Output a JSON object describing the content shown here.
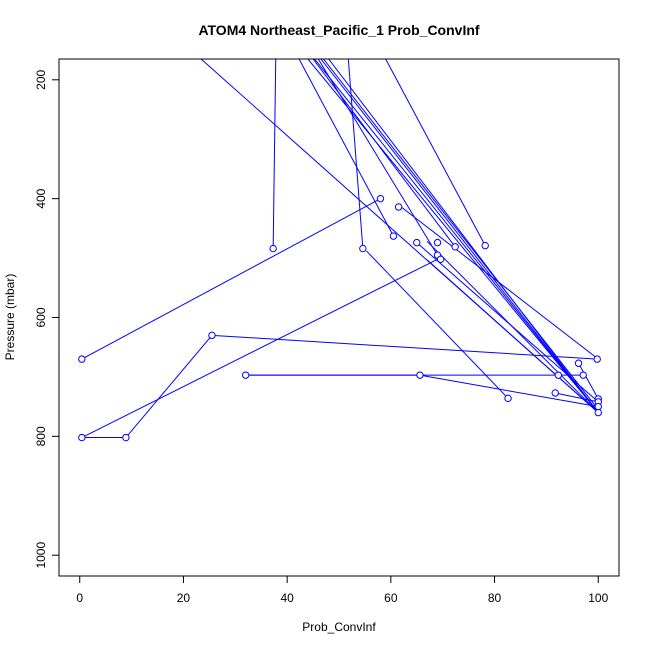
{
  "chart_data": {
    "type": "scatter",
    "title": "ATOM4 Northeast_Pacific_1 Prob_ConvInf",
    "xlabel": "Prob_ConvInf",
    "ylabel": "Pressure (mbar)",
    "xlim": [
      -4,
      104
    ],
    "ylim": [
      1035,
      165
    ],
    "y_reversed": true,
    "xticks": [
      0,
      20,
      40,
      60,
      80,
      100
    ],
    "yticks": [
      200,
      400,
      600,
      800,
      1000
    ],
    "color": "#0000ff",
    "grid": false,
    "points": [
      {
        "x": 0.4,
        "y": 670
      },
      {
        "x": 0.4,
        "y": 802
      },
      {
        "x": 8.9,
        "y": 802
      },
      {
        "x": 25.5,
        "y": 630
      },
      {
        "x": 32.0,
        "y": 697
      },
      {
        "x": 37.3,
        "y": 484
      },
      {
        "x": 54.6,
        "y": 484
      },
      {
        "x": 58.0,
        "y": 400
      },
      {
        "x": 60.5,
        "y": 463
      },
      {
        "x": 61.5,
        "y": 414
      },
      {
        "x": 65.0,
        "y": 474
      },
      {
        "x": 65.6,
        "y": 697
      },
      {
        "x": 69.0,
        "y": 474
      },
      {
        "x": 69.0,
        "y": 495
      },
      {
        "x": 69.6,
        "y": 502
      },
      {
        "x": 72.4,
        "y": 481
      },
      {
        "x": 78.2,
        "y": 479
      },
      {
        "x": 82.6,
        "y": 736
      },
      {
        "x": 91.7,
        "y": 727
      },
      {
        "x": 92.3,
        "y": 697
      },
      {
        "x": 96.2,
        "y": 677
      },
      {
        "x": 97.1,
        "y": 697
      },
      {
        "x": 99.8,
        "y": 670
      },
      {
        "x": 100,
        "y": 737
      },
      {
        "x": 100,
        "y": 742
      },
      {
        "x": 100,
        "y": 750
      },
      {
        "x": 100,
        "y": 760
      }
    ],
    "segments": [
      [
        {
          "x": 0.4,
          "y": 670
        },
        {
          "x": 58.0,
          "y": 400
        }
      ],
      [
        {
          "x": 0.4,
          "y": 802
        },
        {
          "x": 8.9,
          "y": 802
        }
      ],
      [
        {
          "x": 8.9,
          "y": 802
        },
        {
          "x": 25.5,
          "y": 630
        }
      ],
      [
        {
          "x": 25.5,
          "y": 630
        },
        {
          "x": 99.8,
          "y": 670
        }
      ],
      [
        {
          "x": 0.4,
          "y": 802
        },
        {
          "x": 69.0,
          "y": 502
        }
      ],
      [
        {
          "x": 32.0,
          "y": 697
        },
        {
          "x": 65.6,
          "y": 697
        }
      ],
      [
        {
          "x": 32.0,
          "y": 697
        },
        {
          "x": 97.1,
          "y": 697
        }
      ],
      [
        {
          "x": 65.6,
          "y": 697
        },
        {
          "x": 100,
          "y": 750
        }
      ],
      [
        {
          "x": 37.3,
          "y": 484
        },
        {
          "x": 37.8,
          "y": 165
        }
      ],
      [
        {
          "x": 54.6,
          "y": 484
        },
        {
          "x": 51.8,
          "y": 165
        }
      ],
      [
        {
          "x": 55.3,
          "y": 488
        },
        {
          "x": 82.6,
          "y": 736
        }
      ],
      [
        {
          "x": 60.5,
          "y": 463
        },
        {
          "x": 42.3,
          "y": 165
        }
      ],
      [
        {
          "x": 23.4,
          "y": 165
        },
        {
          "x": 100,
          "y": 760
        }
      ],
      [
        {
          "x": 62.0,
          "y": 414
        },
        {
          "x": 100,
          "y": 670
        }
      ],
      [
        {
          "x": 69.0,
          "y": 495
        },
        {
          "x": 46.0,
          "y": 165
        }
      ],
      [
        {
          "x": 72.4,
          "y": 481
        },
        {
          "x": 45.0,
          "y": 165
        }
      ],
      [
        {
          "x": 78.2,
          "y": 479
        },
        {
          "x": 59.0,
          "y": 165
        }
      ],
      [
        {
          "x": 46.5,
          "y": 165
        },
        {
          "x": 100,
          "y": 760
        }
      ],
      [
        {
          "x": 44.0,
          "y": 165
        },
        {
          "x": 100,
          "y": 760
        }
      ],
      [
        {
          "x": 48.0,
          "y": 165
        },
        {
          "x": 100,
          "y": 760
        }
      ],
      [
        {
          "x": 45.3,
          "y": 165
        },
        {
          "x": 100,
          "y": 760
        }
      ],
      [
        {
          "x": 47.0,
          "y": 165
        },
        {
          "x": 100,
          "y": 755
        }
      ],
      [
        {
          "x": 67.0,
          "y": 472
        },
        {
          "x": 100,
          "y": 760
        }
      ],
      [
        {
          "x": 67.0,
          "y": 503
        },
        {
          "x": 100,
          "y": 760
        }
      ],
      [
        {
          "x": 91.7,
          "y": 727
        },
        {
          "x": 100,
          "y": 742
        }
      ],
      [
        {
          "x": 96.2,
          "y": 677
        },
        {
          "x": 100,
          "y": 737
        }
      ],
      [
        {
          "x": 65.0,
          "y": 474
        },
        {
          "x": 100,
          "y": 742
        }
      ]
    ]
  }
}
